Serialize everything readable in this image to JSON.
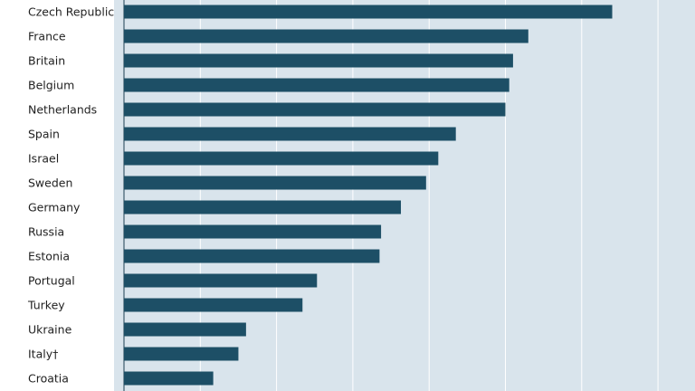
{
  "chart_data": {
    "type": "bar",
    "orientation": "horizontal",
    "categories": [
      "Czech Republic",
      "France",
      "Britain",
      "Belgium",
      "Netherlands",
      "Spain",
      "Israel",
      "Sweden",
      "Germany",
      "Russia",
      "Estonia",
      "Portugal",
      "Turkey",
      "Ukraine",
      "Italy†",
      "Croatia"
    ],
    "values": [
      64,
      53,
      51,
      50.5,
      50,
      43.5,
      41.2,
      39.6,
      36.3,
      33.7,
      33.5,
      25.3,
      23.4,
      16,
      15,
      11.7
    ],
    "xlim": [
      0,
      70
    ],
    "grid": true,
    "colors": {
      "bar": "#1d4f66",
      "background": "#d9e4ec",
      "gridline": "#ffffff",
      "label_panel": "#ffffff"
    }
  }
}
